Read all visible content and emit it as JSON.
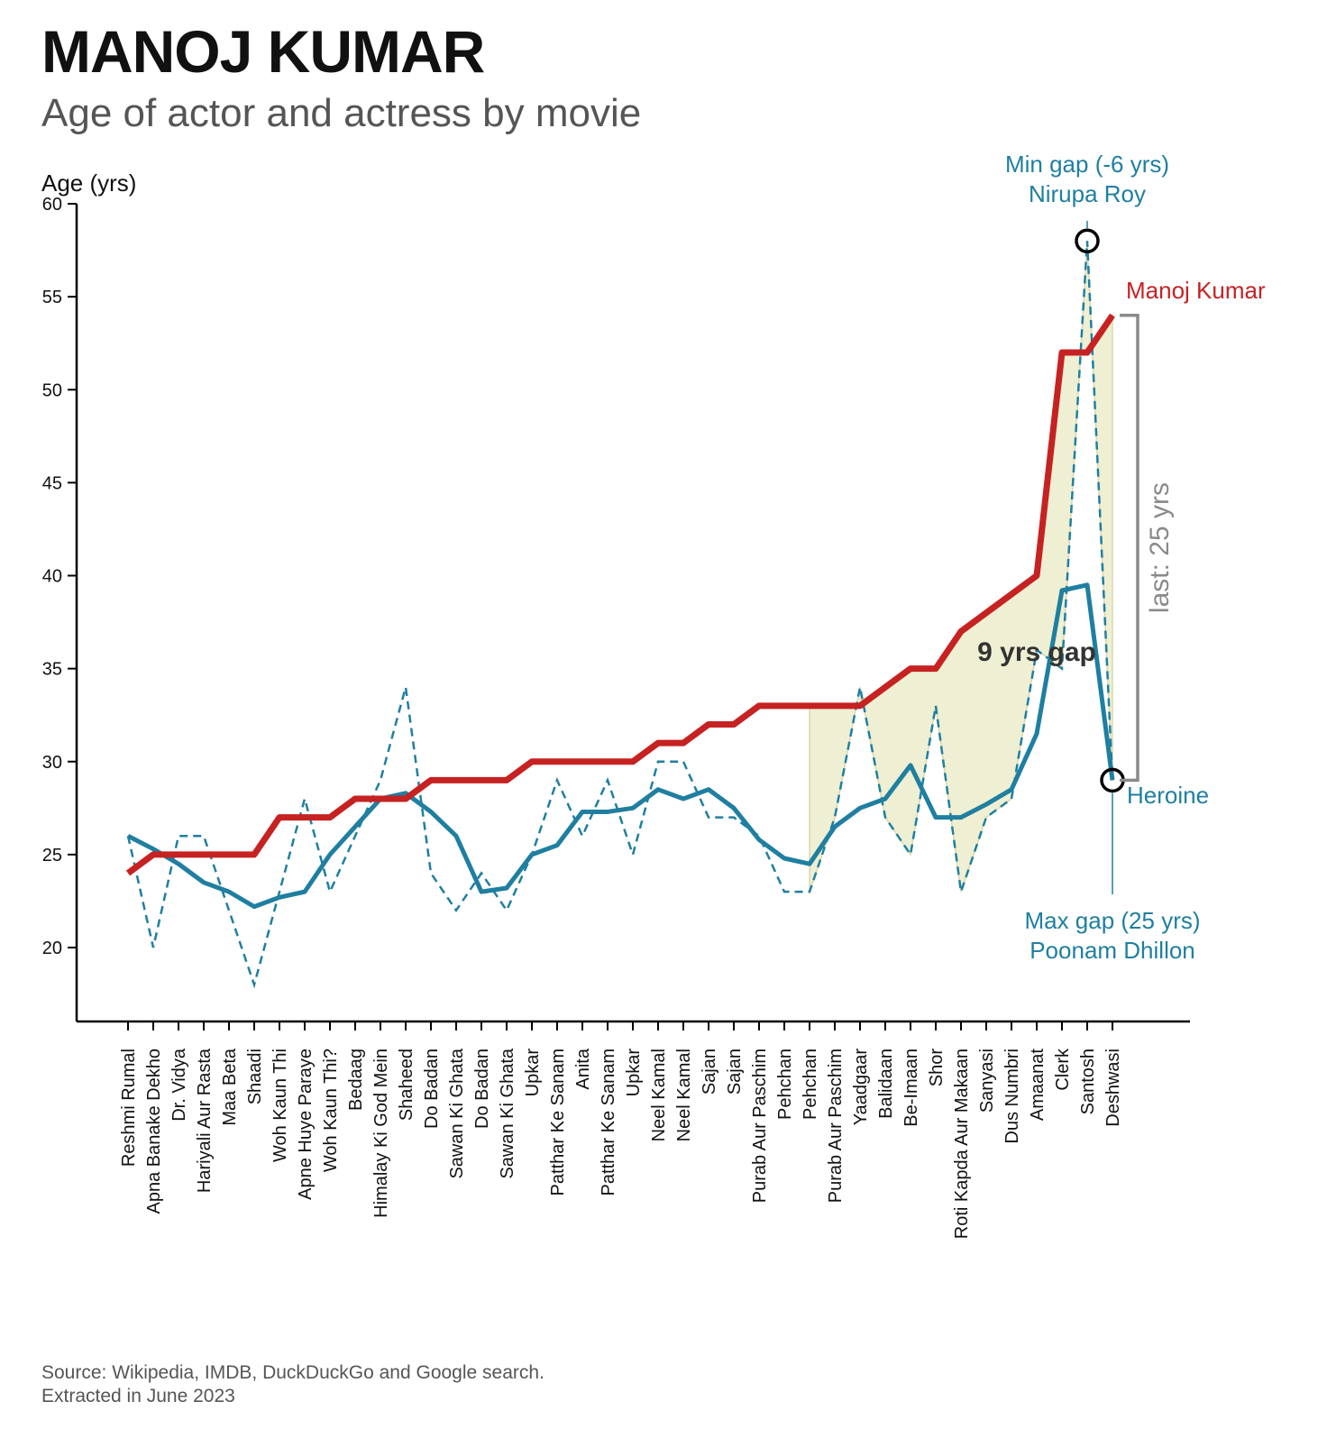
{
  "header": {
    "title": "MANOJ KUMAR",
    "subtitle": "Age of actor and actress by movie"
  },
  "footer": {
    "source_line1": "Source: Wikipedia, IMDB, DuckDuckGo and Google search.",
    "source_line2": "Extracted in June 2023"
  },
  "colors": {
    "actor": "#c62222",
    "heroine": "#1f7fa0",
    "fill": "#efefd3",
    "bracket": "#8a8a8a",
    "text_dark": "#333333"
  },
  "chart_data": {
    "type": "line",
    "ylabel": "Age (yrs)",
    "ylim": [
      16,
      60
    ],
    "yticks": [
      20,
      25,
      30,
      35,
      40,
      45,
      50,
      55,
      60
    ],
    "categories": [
      "Reshmi Rumal",
      "Apna Banake Dekho",
      "Dr. Vidya",
      "Hariyali Aur Rasta",
      "Maa Beta",
      "Shaadi",
      "Woh Kaun Thi",
      "Apne Huye Paraye",
      "Woh Kaun Thi?",
      "Bedaag",
      "Himalay Ki God Mein",
      "Shaheed",
      "Do Badan",
      "Sawan Ki Ghata",
      "Do Badan",
      "Sawan Ki Ghata",
      "Upkar",
      "Patthar Ke Sanam",
      "Anita",
      "Patthar Ke Sanam",
      "Upkar",
      "Neel Kamal",
      "Neel Kamal",
      "Sajan",
      "Sajan",
      "Purab Aur Paschim",
      "Pehchan",
      "Pehchan",
      "Purab Aur Paschim",
      "Yaadgaar",
      "Balidaan",
      "Be-Imaan",
      "Shor",
      "Roti Kapda Aur Makaan",
      "Sanyasi",
      "Dus Numbri",
      "Amaanat",
      "Clerk",
      "Santosh",
      "Deshwasi"
    ],
    "series": [
      {
        "name": "Manoj Kumar",
        "style": "solid",
        "values": [
          24,
          25,
          25,
          25,
          25,
          25,
          27,
          27,
          27,
          28,
          28,
          28,
          29,
          29,
          29,
          29,
          30,
          30,
          30,
          30,
          30,
          31,
          31,
          32,
          32,
          33,
          33,
          33,
          33,
          33,
          34,
          35,
          35,
          37,
          38,
          39,
          40,
          52,
          52,
          54
        ]
      },
      {
        "name": "Heroine",
        "style": "dashed",
        "values": [
          26,
          20,
          26,
          26,
          22,
          18,
          23,
          28,
          23,
          26,
          29,
          34,
          24,
          22,
          24,
          22,
          25,
          29,
          26,
          29,
          25,
          30,
          30,
          27,
          27,
          26,
          23,
          23,
          27,
          34,
          27,
          25,
          33,
          23,
          27,
          28,
          36,
          35,
          58,
          29
        ]
      },
      {
        "name": "Heroine (rolling average)",
        "style": "solid",
        "values": [
          26,
          25.3,
          24.5,
          23.5,
          23,
          22.2,
          22.7,
          23,
          25,
          26.5,
          28,
          28.3,
          27.3,
          26,
          23,
          23.2,
          25,
          25.5,
          27.3,
          27.3,
          27.5,
          28.5,
          28,
          28.5,
          27.5,
          25.8,
          24.8,
          24.5,
          26.5,
          27.5,
          28,
          29.8,
          27,
          27,
          27.7,
          28.5,
          31.5,
          39.2,
          39.5,
          29
        ]
      }
    ],
    "shade_from_index": 27,
    "annotations": {
      "min_gap": {
        "line1": "Min gap (-6 yrs)",
        "line2": "Nirupa Roy",
        "index": 38,
        "value": 58
      },
      "max_gap": {
        "line1": "Max gap (25 yrs)",
        "line2": "Poonam Dhillon",
        "index": 39,
        "value": 29
      },
      "actor_label": "Manoj Kumar",
      "heroine_label": "Heroine",
      "mean_gap_label": "9 yrs gap",
      "last_gap_label": "last: 25 yrs"
    }
  }
}
